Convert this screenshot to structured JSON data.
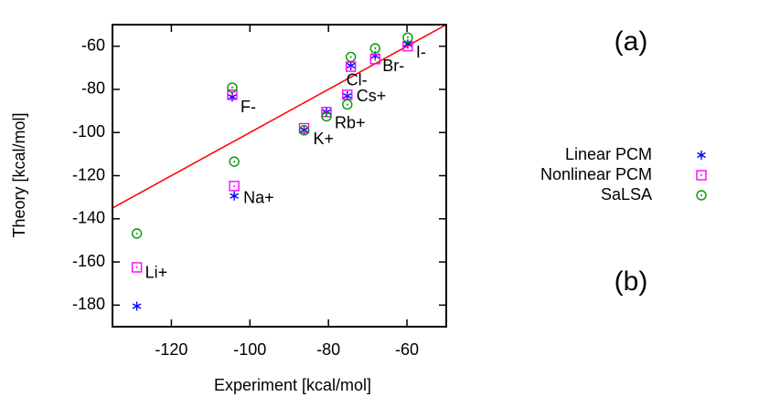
{
  "chart_data": {
    "type": "scatter",
    "xlabel": "Experiment [kcal/mol]",
    "ylabel": "Theory [kcal/mol]",
    "categories": [
      "Li+",
      "Na+",
      "K+",
      "Rb+",
      "Cs+",
      "F-",
      "Cl-",
      "Br-",
      "I-"
    ],
    "x": [
      -128.8,
      -104,
      -86.2,
      -80.5,
      -75.2,
      -104.5,
      -74.3,
      -68.1,
      -59.8
    ],
    "series": [
      {
        "name": "Linear PCM",
        "color": "#0000ff",
        "marker": "star",
        "values": [
          -180.5,
          -129.4,
          -98.8,
          -90.5,
          -83,
          -83.5,
          -69,
          -64.5,
          -59
        ]
      },
      {
        "name": "Nonlinear PCM",
        "color": "#ff00ff",
        "marker": "square",
        "values": [
          -162.5,
          -124.8,
          -98,
          -90.5,
          -82.5,
          -82.5,
          -69.5,
          -66,
          -60
        ]
      },
      {
        "name": "SaLSA",
        "color": "#009900",
        "marker": "circle",
        "values": [
          -146.8,
          -113.5,
          -99,
          -92.5,
          -87,
          -79.2,
          -65,
          -61,
          -56
        ]
      }
    ],
    "xlim": [
      -135,
      -50
    ],
    "ylim": [
      -190,
      -50
    ],
    "xticks": [
      -120,
      -100,
      -80,
      -60
    ],
    "yticks": [
      -60,
      -80,
      -100,
      -120,
      -140,
      -160,
      -180
    ],
    "diagonal_color": "#ff0000",
    "panel_labels": [
      "(a)",
      "(b)"
    ]
  }
}
